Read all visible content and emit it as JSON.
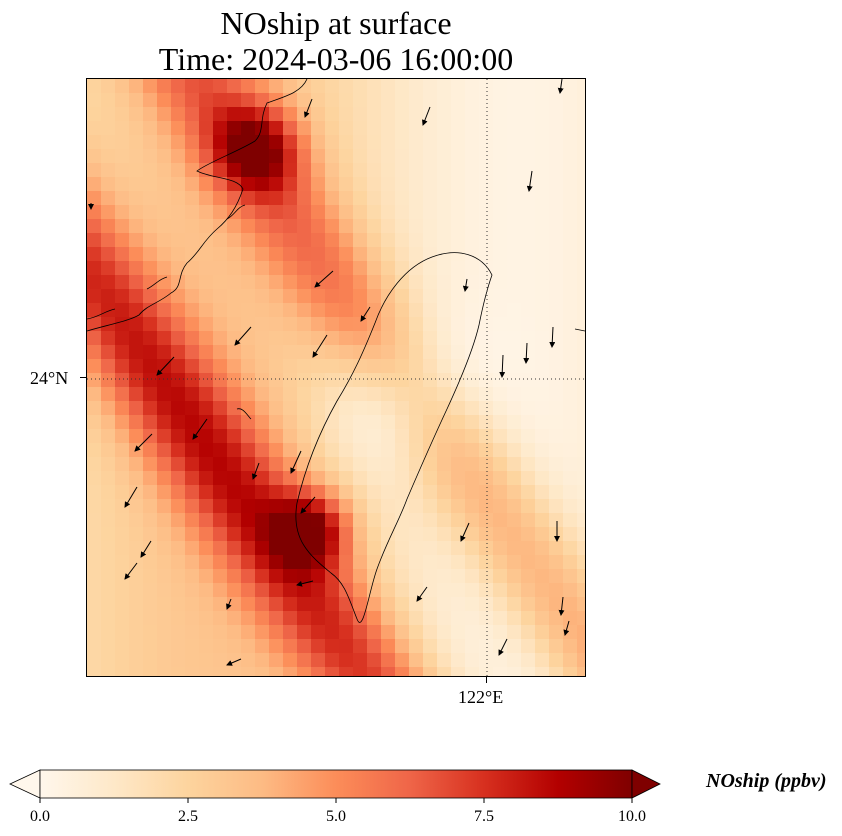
{
  "title": {
    "line1": "NOship at surface",
    "line2": "Time: 2024-03-06 16:00:00"
  },
  "axes": {
    "lat_label": "24°N",
    "lon_label": "122°E"
  },
  "colorbar": {
    "label": "NOship (ppbv)",
    "ticks": [
      "0.0",
      "2.5",
      "5.0",
      "7.5",
      "10.0"
    ],
    "range": [
      0,
      10
    ],
    "extend": "both",
    "colormap": [
      "#fff7ec",
      "#fee8c8",
      "#fdd49e",
      "#fdbb84",
      "#fc8d59",
      "#ef6548",
      "#d7301f",
      "#b30000",
      "#7f0000"
    ]
  },
  "map": {
    "gridlines": "dotted",
    "coastline_color": "#000000",
    "wind_arrows": "black"
  }
}
